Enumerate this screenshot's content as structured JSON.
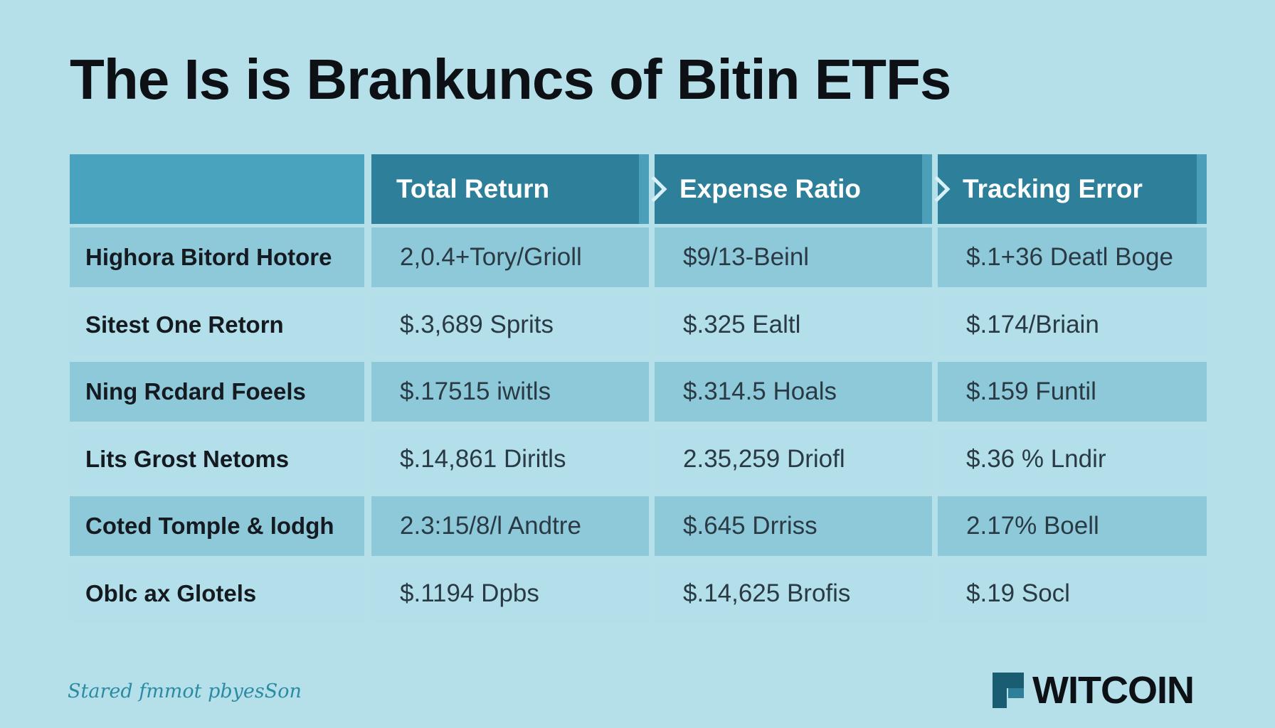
{
  "title": "The Is is Brankuncs of Bitin ETFs",
  "chart_data": {
    "type": "table",
    "columns": [
      "Total Return",
      "Expense Ratio",
      "Tracking Error"
    ],
    "rows": [
      {
        "label": "Highora Bitord Hotore",
        "values": [
          "2,0.4+Tory/Grioll",
          "$9/13-Beinl",
          "$.1+36 Deatl Boge"
        ]
      },
      {
        "label": "Sitest One Retorn",
        "values": [
          "$.3,689 Sprits",
          "$.325 Ealtl",
          "$.174/Briain"
        ]
      },
      {
        "label": "Ning Rcdard Foeels",
        "values": [
          "$.17515 iwitls",
          "$.314.5 Hoals",
          "$.159 Funtil"
        ]
      },
      {
        "label": "Lits Grost Netoms",
        "values": [
          "$.14,861 Diritls",
          "2.35,259 Driofl",
          "$.36 % Lndir"
        ]
      },
      {
        "label": "Coted Tomple & lodgh",
        "values": [
          "2.3:15/8/l Andtre",
          "$.645 Drriss",
          "2.17% Boell"
        ]
      },
      {
        "label": "Oblc ax Glotels",
        "values": [
          "$.1194 Dpbs",
          "$.14,625 Brofis",
          "$.19 Socl"
        ]
      }
    ]
  },
  "footer": {
    "note": "Stared fmmot pbyesSon"
  },
  "brand": {
    "name": "WITCOIN"
  },
  "colors": {
    "background": "#b5e0ea",
    "header": "#2d7f9a",
    "accent": "#4aa3be"
  }
}
